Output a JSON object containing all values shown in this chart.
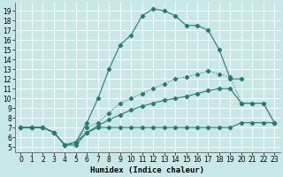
{
  "xlabel": "Humidex (Indice chaleur)",
  "background_color": "#c8e8e8",
  "grid_color": "#ffffff",
  "line_color": "#2a7b6f",
  "ylim": [
    4.5,
    19.8
  ],
  "xlim": [
    -0.5,
    23.5
  ],
  "yticks": [
    5,
    6,
    7,
    8,
    9,
    10,
    11,
    12,
    13,
    14,
    15,
    16,
    17,
    18,
    19
  ],
  "xticks": [
    0,
    1,
    2,
    3,
    4,
    5,
    6,
    7,
    8,
    9,
    10,
    11,
    12,
    13,
    14,
    15,
    16,
    17,
    18,
    19,
    20,
    21,
    22,
    23
  ],
  "line1_x": [
    0,
    1,
    2,
    3,
    4,
    5,
    6,
    7,
    8,
    9,
    10,
    11,
    12,
    13,
    14,
    15,
    16,
    17,
    18,
    19,
    20,
    21,
    22,
    23
  ],
  "line1_y": [
    7.0,
    7.0,
    7.0,
    6.5,
    5.2,
    5.2,
    6.5,
    7.0,
    7.0,
    7.0,
    7.0,
    7.0,
    7.0,
    7.0,
    7.0,
    7.0,
    7.0,
    7.0,
    7.0,
    7.0,
    7.5,
    7.5,
    7.5,
    7.5
  ],
  "line2_x": [
    0,
    1,
    2,
    3,
    4,
    5,
    6,
    7,
    8,
    9,
    10,
    11,
    12,
    13,
    14,
    15,
    16,
    17,
    18,
    19,
    20,
    21,
    22,
    23
  ],
  "line2_y": [
    7.0,
    7.0,
    7.0,
    6.5,
    5.2,
    5.5,
    6.5,
    7.2,
    7.8,
    8.3,
    8.8,
    9.2,
    9.5,
    9.8,
    10.0,
    10.2,
    10.5,
    10.8,
    11.0,
    11.0,
    9.5,
    9.5,
    9.5,
    7.5
  ],
  "line3_x": [
    0,
    1,
    2,
    3,
    4,
    5,
    6,
    7,
    8,
    9,
    10,
    11,
    12,
    13,
    14,
    15,
    16,
    17,
    18,
    19,
    20,
    21,
    22,
    23
  ],
  "line3_y": [
    7.0,
    7.0,
    7.0,
    6.5,
    5.2,
    5.5,
    7.0,
    7.5,
    8.5,
    9.5,
    10.0,
    10.5,
    11.0,
    11.5,
    12.0,
    12.2,
    12.5,
    12.8,
    12.5,
    12.2,
    9.5,
    9.5,
    9.5,
    7.5
  ],
  "line4_x": [
    0,
    1,
    2,
    3,
    4,
    5,
    6,
    7,
    8,
    9,
    10,
    11,
    12,
    13,
    14,
    15,
    16,
    17,
    18,
    19,
    20
  ],
  "line4_y": [
    7.0,
    7.0,
    7.0,
    6.5,
    5.2,
    5.5,
    7.5,
    10.0,
    13.0,
    15.5,
    16.5,
    18.5,
    19.2,
    19.0,
    18.5,
    17.5,
    17.5,
    17.0,
    15.0,
    12.0,
    12.0
  ]
}
